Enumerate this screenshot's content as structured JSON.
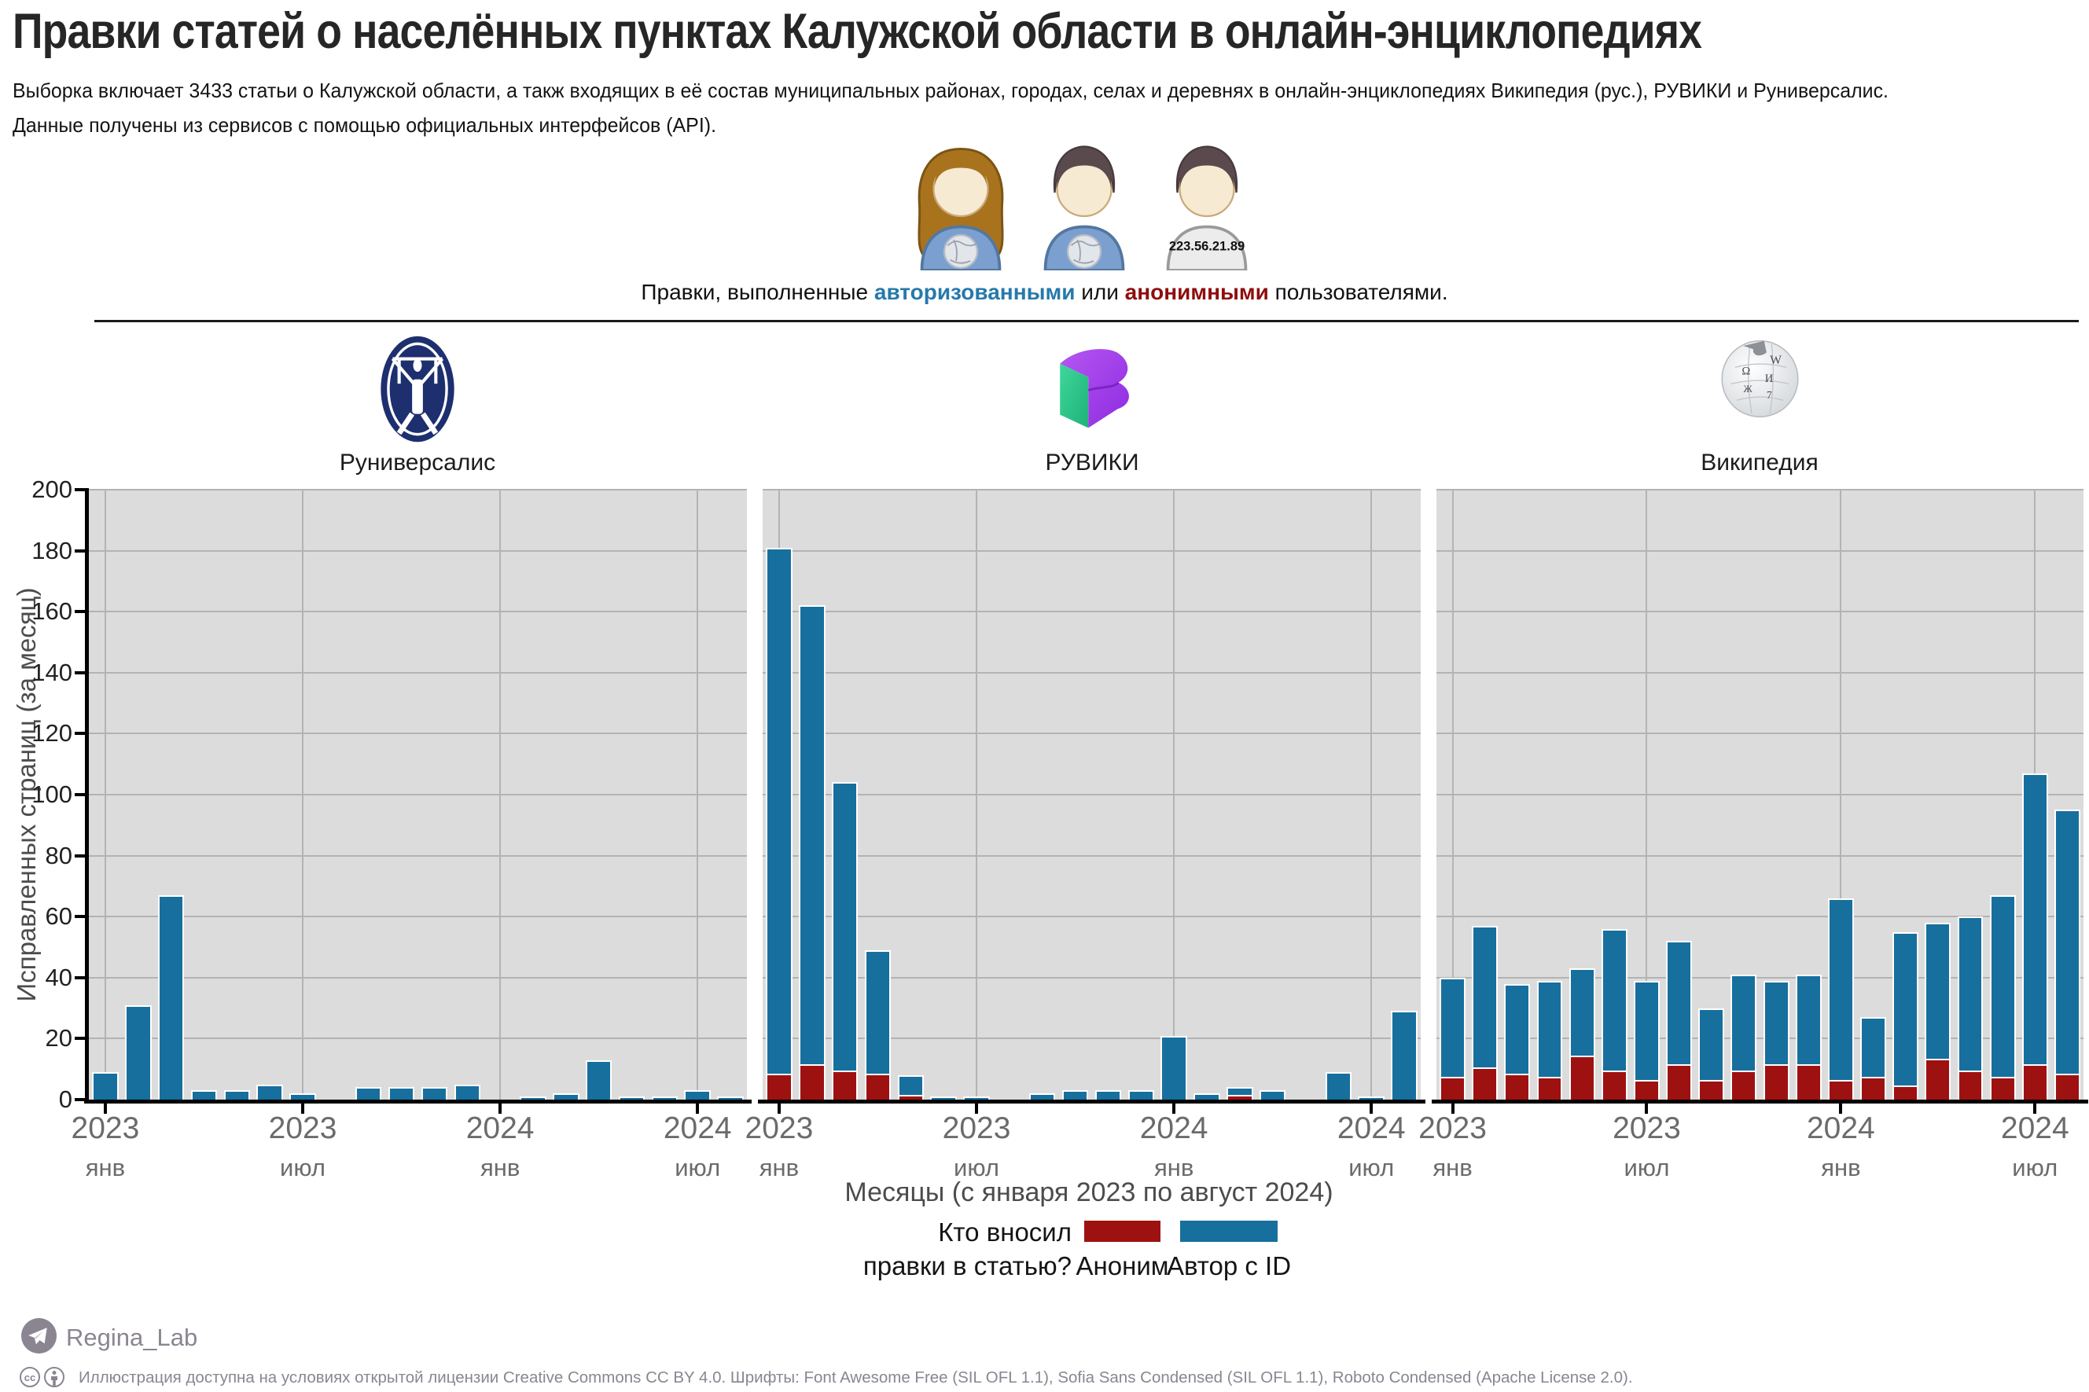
{
  "title": "Правки статей о населённых пунктах Калужской области в онлайн-энциклопедиях",
  "subtitle_line1": "Выборка включает 3433 статьи о Калужской области, а такж входящих в её состав муниципальных районах, городах, селах и деревнях в онлайн-энциклопедиях Википедия (рус.), РУВИКИ и Руниверсалис.",
  "subtitle_line2": "Данные получены из сервисов с помощью официальных интерфейсов (API).",
  "user_icons": {
    "ip_label": "223.56.21.89"
  },
  "caption": {
    "prefix": "Правки, выполненные ",
    "authorized": "авторизованными",
    "connector": " или ",
    "anonymous": "анонимными",
    "suffix": " пользователями."
  },
  "legend": {
    "question_line1": "Кто вносил",
    "question_line2": "правки в статью?",
    "anonymous_label": "Аноним",
    "registered_label": "Автор с ID"
  },
  "footer": {
    "channel": "Regina_Lab",
    "license": "Иллюстрация доступна на условиях открытой лицензии Creative Commons CC BY 4.0. Шрифты: Font Awesome Free (SIL OFL 1.1), Sofia Sans Condensed (SIL OFL 1.1), Roboto Condensed (Apache License 2.0)."
  },
  "colors": {
    "bar_registered": "#176f9e",
    "bar_anonymous": "#9e1111",
    "panel_bg": "#dcdcdc",
    "grid": "#b3b3b3",
    "caption_authorized": "#2679ab",
    "caption_anonymous": "#8f0d0d",
    "footer_text": "#8b8591"
  },
  "chart_data": {
    "type": "bar",
    "stacked": true,
    "title": "Правки статей о населённых пунктах Калужской области в онлайн-энциклопедиях",
    "ylabel": "Исправленных страниц (за месяц)",
    "xlabel": "Месяцы (с января 2023 по август 2024)",
    "ylim": [
      0,
      200
    ],
    "ytick_step": 20,
    "grid": true,
    "legend_position": "bottom",
    "categories": [
      "янв 2023",
      "фев 2023",
      "мар 2023",
      "апр 2023",
      "май 2023",
      "июн 2023",
      "июл 2023",
      "авг 2023",
      "сен 2023",
      "окт 2023",
      "ноя 2023",
      "дек 2023",
      "янв 2024",
      "фев 2024",
      "мар 2024",
      "апр 2024",
      "май 2024",
      "июн 2024",
      "июл 2024",
      "авг 2024"
    ],
    "x_tick_positions": [
      0,
      6,
      12,
      18
    ],
    "x_tick_labels": [
      {
        "year": "2023",
        "month": "янв"
      },
      {
        "year": "2023",
        "month": "июл"
      },
      {
        "year": "2024",
        "month": "янв"
      },
      {
        "year": "2024",
        "month": "июл"
      }
    ],
    "series_order": [
      "Аноним",
      "Автор с ID"
    ],
    "series_colors": [
      "#9e1111",
      "#176f9e"
    ],
    "panels": [
      {
        "name": "Руниверсалис",
        "series": [
          {
            "name": "Аноним",
            "values": [
              0,
              0,
              0,
              0,
              0,
              0,
              0,
              0,
              0,
              0,
              0,
              0,
              0,
              0,
              0,
              0,
              0,
              0,
              0,
              0
            ]
          },
          {
            "name": "Автор с ID",
            "values": [
              9,
              31,
              67,
              3,
              3,
              5,
              2,
              0,
              4,
              4,
              4,
              5,
              0,
              1,
              2,
              13,
              1,
              1,
              3,
              1
            ]
          }
        ]
      },
      {
        "name": "РУВИКИ",
        "series": [
          {
            "name": "Аноним",
            "values": [
              8,
              11,
              9,
              8,
              1,
              0,
              0,
              0,
              0,
              0,
              0,
              0,
              0,
              0,
              1,
              0,
              0,
              0,
              0,
              0
            ]
          },
          {
            "name": "Автор с ID",
            "values": [
              173,
              151,
              95,
              41,
              7,
              1,
              1,
              0,
              2,
              3,
              3,
              3,
              21,
              2,
              3,
              3,
              0,
              9,
              1,
              29
            ]
          }
        ]
      },
      {
        "name": "Википедия",
        "series": [
          {
            "name": "Аноним",
            "values": [
              7,
              10,
              8,
              7,
              14,
              9,
              6,
              11,
              6,
              9,
              11,
              11,
              6,
              7,
              4,
              13,
              9,
              7,
              11,
              8
            ]
          },
          {
            "name": "Автор с ID",
            "values": [
              33,
              47,
              30,
              32,
              29,
              47,
              33,
              41,
              24,
              32,
              28,
              30,
              60,
              20,
              51,
              45,
              51,
              60,
              96,
              87
            ]
          }
        ]
      }
    ]
  }
}
